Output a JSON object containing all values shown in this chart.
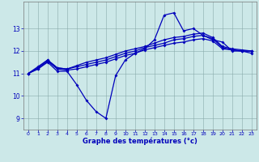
{
  "xlabel": "Graphe des températures (°c)",
  "background_color": "#cce8e8",
  "line_color": "#0000bb",
  "xlim": [
    -0.5,
    23.5
  ],
  "ylim": [
    8.5,
    14.2
  ],
  "yticks": [
    9,
    10,
    11,
    12,
    13
  ],
  "xticks": [
    0,
    1,
    2,
    3,
    4,
    5,
    6,
    7,
    8,
    9,
    10,
    11,
    12,
    13,
    14,
    15,
    16,
    17,
    18,
    19,
    20,
    21,
    22,
    23
  ],
  "series": [
    [
      11.0,
      11.2,
      11.5,
      11.1,
      11.1,
      10.5,
      9.8,
      9.3,
      9.0,
      10.9,
      11.6,
      11.9,
      12.1,
      12.5,
      13.6,
      13.7,
      12.9,
      13.0,
      12.7,
      12.5,
      12.4,
      12.0,
      12.0,
      11.9
    ],
    [
      11.0,
      11.2,
      11.55,
      11.2,
      11.15,
      11.2,
      11.3,
      11.4,
      11.5,
      11.65,
      11.8,
      11.9,
      12.05,
      12.15,
      12.25,
      12.35,
      12.4,
      12.5,
      12.55,
      12.45,
      12.1,
      12.05,
      12.0,
      12.0
    ],
    [
      11.0,
      11.25,
      11.6,
      11.25,
      11.2,
      11.3,
      11.4,
      11.5,
      11.6,
      11.75,
      11.9,
      12.0,
      12.15,
      12.25,
      12.35,
      12.5,
      12.55,
      12.65,
      12.7,
      12.55,
      12.15,
      12.05,
      12.0,
      12.0
    ],
    [
      11.0,
      11.3,
      11.6,
      11.25,
      11.2,
      11.35,
      11.5,
      11.6,
      11.7,
      11.85,
      12.0,
      12.1,
      12.2,
      12.35,
      12.5,
      12.6,
      12.65,
      12.75,
      12.8,
      12.6,
      12.2,
      12.1,
      12.05,
      12.0
    ]
  ],
  "markersize": 2.0,
  "linewidth": 0.9
}
